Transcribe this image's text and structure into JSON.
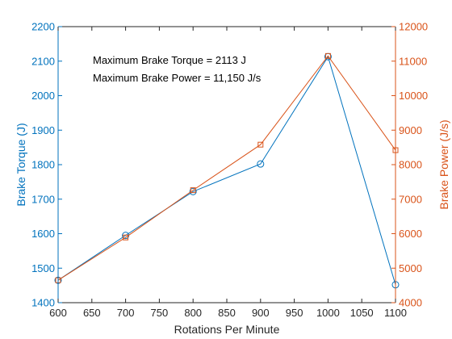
{
  "chart_data": {
    "type": "line",
    "title": "",
    "xlabel": "Rotations Per Minute",
    "ylabel_left": "Brake Torque (J)",
    "ylabel_right": "Brake Power (J/s)",
    "xlim": [
      600,
      1100
    ],
    "ylim_left": [
      1400,
      2200
    ],
    "ylim_right": [
      4000,
      12000
    ],
    "x_ticks": [
      600,
      650,
      700,
      750,
      800,
      850,
      900,
      950,
      1000,
      1050,
      1100
    ],
    "y_left_ticks": [
      1400,
      1500,
      1600,
      1700,
      1800,
      1900,
      2000,
      2100,
      2200
    ],
    "y_right_ticks": [
      4000,
      5000,
      6000,
      7000,
      8000,
      9000,
      10000,
      11000,
      12000
    ],
    "grid": false,
    "series": [
      {
        "axis": "left",
        "marker": "circle",
        "color": "#0072BD",
        "x": [
          600,
          700,
          800,
          900,
          1000,
          1100
        ],
        "values": [
          1465,
          1595,
          1722,
          1802,
          2113,
          1452
        ]
      },
      {
        "axis": "right",
        "marker": "square",
        "color": "#D95319",
        "x": [
          600,
          700,
          800,
          900,
          1000,
          1100
        ],
        "values": [
          4650,
          5890,
          7260,
          8580,
          11150,
          8420
        ]
      }
    ],
    "annotations": [
      "Maximum Brake Torque = 2113 J",
      "Maximum Brake Power = 11,150 J/s"
    ]
  }
}
